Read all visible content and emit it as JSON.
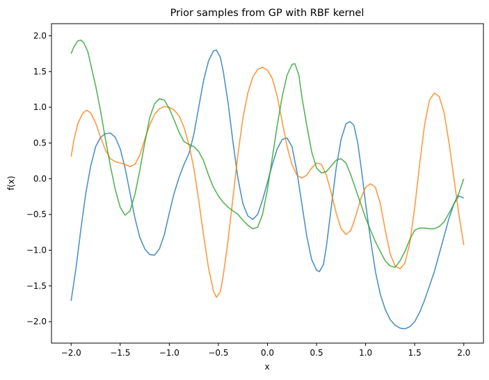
{
  "chart_data": {
    "type": "line",
    "title": "Prior samples from GP with RBF kernel",
    "xlabel": "x",
    "ylabel": "f(x)",
    "xlim": [
      -2.2,
      2.2
    ],
    "ylim": [
      -2.3,
      2.17
    ],
    "grid": false,
    "legend": "none",
    "x_ticks": [
      -2.0,
      -1.5,
      -1.0,
      -0.5,
      0.0,
      0.5,
      1.0,
      1.5,
      2.0
    ],
    "x_tick_labels": [
      "−2.0",
      "−1.5",
      "−1.0",
      "−0.5",
      "0.0",
      "0.5",
      "1.0",
      "1.5",
      "2.0"
    ],
    "y_ticks": [
      -2.0,
      -1.5,
      -1.0,
      -0.5,
      0.0,
      0.5,
      1.0,
      1.5,
      2.0
    ],
    "y_tick_labels": [
      "−2.0",
      "−1.5",
      "−1.0",
      "−0.5",
      "0.0",
      "0.5",
      "1.0",
      "1.5",
      "2.0"
    ],
    "series": [
      {
        "color": "#1f77b4",
        "points": [
          [
            -2.0,
            -1.71
          ],
          [
            -1.95,
            -1.25
          ],
          [
            -1.9,
            -0.7
          ],
          [
            -1.85,
            -0.2
          ],
          [
            -1.8,
            0.18
          ],
          [
            -1.75,
            0.45
          ],
          [
            -1.7,
            0.58
          ],
          [
            -1.65,
            0.63
          ],
          [
            -1.6,
            0.64
          ],
          [
            -1.55,
            0.58
          ],
          [
            -1.5,
            0.42
          ],
          [
            -1.45,
            0.15
          ],
          [
            -1.4,
            -0.2
          ],
          [
            -1.35,
            -0.55
          ],
          [
            -1.3,
            -0.82
          ],
          [
            -1.25,
            -0.98
          ],
          [
            -1.2,
            -1.06
          ],
          [
            -1.15,
            -1.07
          ],
          [
            -1.1,
            -0.98
          ],
          [
            -1.05,
            -0.78
          ],
          [
            -1.0,
            -0.48
          ],
          [
            -0.95,
            -0.2
          ],
          [
            -0.9,
            0.02
          ],
          [
            -0.85,
            0.2
          ],
          [
            -0.8,
            0.35
          ],
          [
            -0.75,
            0.62
          ],
          [
            -0.7,
            1.0
          ],
          [
            -0.65,
            1.38
          ],
          [
            -0.6,
            1.65
          ],
          [
            -0.55,
            1.79
          ],
          [
            -0.52,
            1.8
          ],
          [
            -0.48,
            1.7
          ],
          [
            -0.45,
            1.5
          ],
          [
            -0.4,
            1.05
          ],
          [
            -0.35,
            0.5
          ],
          [
            -0.3,
            0.0
          ],
          [
            -0.25,
            -0.35
          ],
          [
            -0.2,
            -0.52
          ],
          [
            -0.15,
            -0.57
          ],
          [
            -0.1,
            -0.5
          ],
          [
            -0.05,
            -0.3
          ],
          [
            0.0,
            -0.05
          ],
          [
            0.05,
            0.2
          ],
          [
            0.1,
            0.42
          ],
          [
            0.15,
            0.55
          ],
          [
            0.2,
            0.57
          ],
          [
            0.25,
            0.45
          ],
          [
            0.3,
            0.1
          ],
          [
            0.35,
            -0.35
          ],
          [
            0.4,
            -0.8
          ],
          [
            0.45,
            -1.13
          ],
          [
            0.5,
            -1.28
          ],
          [
            0.53,
            -1.3
          ],
          [
            0.57,
            -1.2
          ],
          [
            0.6,
            -0.95
          ],
          [
            0.65,
            -0.4
          ],
          [
            0.7,
            0.15
          ],
          [
            0.75,
            0.55
          ],
          [
            0.8,
            0.77
          ],
          [
            0.84,
            0.8
          ],
          [
            0.88,
            0.75
          ],
          [
            0.92,
            0.5
          ],
          [
            0.96,
            0.1
          ],
          [
            1.0,
            -0.35
          ],
          [
            1.05,
            -0.85
          ],
          [
            1.1,
            -1.3
          ],
          [
            1.15,
            -1.62
          ],
          [
            1.2,
            -1.83
          ],
          [
            1.25,
            -1.97
          ],
          [
            1.3,
            -2.05
          ],
          [
            1.35,
            -2.09
          ],
          [
            1.4,
            -2.1
          ],
          [
            1.45,
            -2.07
          ],
          [
            1.5,
            -2.0
          ],
          [
            1.55,
            -1.87
          ],
          [
            1.6,
            -1.7
          ],
          [
            1.65,
            -1.5
          ],
          [
            1.7,
            -1.3
          ],
          [
            1.75,
            -1.05
          ],
          [
            1.8,
            -0.8
          ],
          [
            1.85,
            -0.55
          ],
          [
            1.9,
            -0.35
          ],
          [
            1.95,
            -0.24
          ],
          [
            2.0,
            -0.27
          ]
        ]
      },
      {
        "color": "#ff7f0e",
        "points": [
          [
            -2.0,
            0.31
          ],
          [
            -1.97,
            0.55
          ],
          [
            -1.93,
            0.78
          ],
          [
            -1.88,
            0.92
          ],
          [
            -1.84,
            0.96
          ],
          [
            -1.8,
            0.92
          ],
          [
            -1.75,
            0.78
          ],
          [
            -1.7,
            0.58
          ],
          [
            -1.65,
            0.4
          ],
          [
            -1.6,
            0.28
          ],
          [
            -1.55,
            0.24
          ],
          [
            -1.5,
            0.22
          ],
          [
            -1.45,
            0.2
          ],
          [
            -1.4,
            0.17
          ],
          [
            -1.35,
            0.2
          ],
          [
            -1.3,
            0.33
          ],
          [
            -1.25,
            0.55
          ],
          [
            -1.2,
            0.75
          ],
          [
            -1.15,
            0.9
          ],
          [
            -1.1,
            0.98
          ],
          [
            -1.05,
            1.01
          ],
          [
            -1.0,
            1.0
          ],
          [
            -0.95,
            0.96
          ],
          [
            -0.9,
            0.88
          ],
          [
            -0.85,
            0.72
          ],
          [
            -0.8,
            0.48
          ],
          [
            -0.75,
            0.15
          ],
          [
            -0.7,
            -0.3
          ],
          [
            -0.65,
            -0.8
          ],
          [
            -0.6,
            -1.25
          ],
          [
            -0.55,
            -1.57
          ],
          [
            -0.52,
            -1.66
          ],
          [
            -0.48,
            -1.58
          ],
          [
            -0.45,
            -1.35
          ],
          [
            -0.4,
            -0.85
          ],
          [
            -0.35,
            -0.25
          ],
          [
            -0.3,
            0.35
          ],
          [
            -0.25,
            0.85
          ],
          [
            -0.2,
            1.2
          ],
          [
            -0.15,
            1.42
          ],
          [
            -0.1,
            1.53
          ],
          [
            -0.05,
            1.56
          ],
          [
            0.0,
            1.52
          ],
          [
            0.05,
            1.4
          ],
          [
            0.1,
            1.15
          ],
          [
            0.15,
            0.8
          ],
          [
            0.2,
            0.45
          ],
          [
            0.25,
            0.2
          ],
          [
            0.3,
            0.05
          ],
          [
            0.35,
            0.01
          ],
          [
            0.4,
            0.05
          ],
          [
            0.45,
            0.15
          ],
          [
            0.5,
            0.22
          ],
          [
            0.55,
            0.2
          ],
          [
            0.6,
            0.05
          ],
          [
            0.65,
            -0.2
          ],
          [
            0.7,
            -0.48
          ],
          [
            0.75,
            -0.7
          ],
          [
            0.8,
            -0.78
          ],
          [
            0.85,
            -0.72
          ],
          [
            0.9,
            -0.52
          ],
          [
            0.95,
            -0.28
          ],
          [
            1.0,
            -0.12
          ],
          [
            1.05,
            -0.07
          ],
          [
            1.1,
            -0.12
          ],
          [
            1.15,
            -0.35
          ],
          [
            1.2,
            -0.72
          ],
          [
            1.25,
            -1.05
          ],
          [
            1.3,
            -1.22
          ],
          [
            1.35,
            -1.26
          ],
          [
            1.4,
            -1.18
          ],
          [
            1.45,
            -0.9
          ],
          [
            1.5,
            -0.4
          ],
          [
            1.55,
            0.2
          ],
          [
            1.6,
            0.75
          ],
          [
            1.65,
            1.1
          ],
          [
            1.7,
            1.2
          ],
          [
            1.75,
            1.15
          ],
          [
            1.8,
            0.92
          ],
          [
            1.85,
            0.5
          ],
          [
            1.9,
            0.0
          ],
          [
            1.95,
            -0.5
          ],
          [
            2.0,
            -0.93
          ]
        ]
      },
      {
        "color": "#2ca02c",
        "points": [
          [
            -2.0,
            1.75
          ],
          [
            -1.97,
            1.85
          ],
          [
            -1.93,
            1.93
          ],
          [
            -1.9,
            1.94
          ],
          [
            -1.87,
            1.9
          ],
          [
            -1.83,
            1.78
          ],
          [
            -1.8,
            1.6
          ],
          [
            -1.75,
            1.3
          ],
          [
            -1.7,
            0.95
          ],
          [
            -1.65,
            0.55
          ],
          [
            -1.6,
            0.18
          ],
          [
            -1.55,
            -0.15
          ],
          [
            -1.5,
            -0.4
          ],
          [
            -1.45,
            -0.51
          ],
          [
            -1.4,
            -0.45
          ],
          [
            -1.35,
            -0.22
          ],
          [
            -1.3,
            0.12
          ],
          [
            -1.25,
            0.5
          ],
          [
            -1.2,
            0.85
          ],
          [
            -1.15,
            1.05
          ],
          [
            -1.1,
            1.12
          ],
          [
            -1.05,
            1.1
          ],
          [
            -1.0,
            0.98
          ],
          [
            -0.95,
            0.82
          ],
          [
            -0.9,
            0.65
          ],
          [
            -0.85,
            0.52
          ],
          [
            -0.8,
            0.48
          ],
          [
            -0.75,
            0.45
          ],
          [
            -0.7,
            0.38
          ],
          [
            -0.65,
            0.25
          ],
          [
            -0.6,
            0.05
          ],
          [
            -0.55,
            -0.12
          ],
          [
            -0.5,
            -0.24
          ],
          [
            -0.45,
            -0.33
          ],
          [
            -0.4,
            -0.4
          ],
          [
            -0.35,
            -0.45
          ],
          [
            -0.3,
            -0.5
          ],
          [
            -0.25,
            -0.58
          ],
          [
            -0.2,
            -0.65
          ],
          [
            -0.15,
            -0.7
          ],
          [
            -0.1,
            -0.68
          ],
          [
            -0.05,
            -0.5
          ],
          [
            0.0,
            -0.15
          ],
          [
            0.05,
            0.3
          ],
          [
            0.1,
            0.75
          ],
          [
            0.15,
            1.15
          ],
          [
            0.2,
            1.45
          ],
          [
            0.25,
            1.6
          ],
          [
            0.28,
            1.61
          ],
          [
            0.32,
            1.45
          ],
          [
            0.35,
            1.15
          ],
          [
            0.4,
            0.75
          ],
          [
            0.45,
            0.38
          ],
          [
            0.5,
            0.15
          ],
          [
            0.55,
            0.08
          ],
          [
            0.6,
            0.1
          ],
          [
            0.65,
            0.18
          ],
          [
            0.7,
            0.26
          ],
          [
            0.75,
            0.28
          ],
          [
            0.8,
            0.22
          ],
          [
            0.85,
            0.05
          ],
          [
            0.9,
            -0.15
          ],
          [
            0.95,
            -0.35
          ],
          [
            1.0,
            -0.55
          ],
          [
            1.05,
            -0.72
          ],
          [
            1.1,
            -0.88
          ],
          [
            1.15,
            -1.02
          ],
          [
            1.2,
            -1.15
          ],
          [
            1.25,
            -1.22
          ],
          [
            1.3,
            -1.24
          ],
          [
            1.35,
            -1.15
          ],
          [
            1.4,
            -1.02
          ],
          [
            1.45,
            -0.85
          ],
          [
            1.5,
            -0.72
          ],
          [
            1.55,
            -0.69
          ],
          [
            1.6,
            -0.69
          ],
          [
            1.65,
            -0.7
          ],
          [
            1.7,
            -0.7
          ],
          [
            1.75,
            -0.67
          ],
          [
            1.8,
            -0.6
          ],
          [
            1.85,
            -0.48
          ],
          [
            1.9,
            -0.35
          ],
          [
            1.95,
            -0.2
          ],
          [
            2.0,
            0.0
          ]
        ]
      }
    ]
  }
}
